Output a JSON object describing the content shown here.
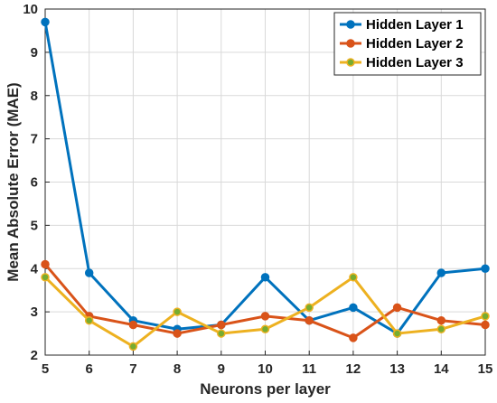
{
  "chart_data": {
    "type": "line",
    "title": "",
    "xlabel": "Neurons per layer",
    "ylabel": "Mean Absolute Error (MAE)",
    "x": [
      5,
      6,
      7,
      8,
      9,
      10,
      11,
      12,
      13,
      14,
      15
    ],
    "xlim": [
      5,
      15
    ],
    "ylim": [
      2,
      10
    ],
    "xticks": [
      "5",
      "6",
      "7",
      "8",
      "9",
      "10",
      "11",
      "12",
      "13",
      "14",
      "15"
    ],
    "yticks": [
      "2",
      "3",
      "4",
      "5",
      "6",
      "7",
      "8",
      "9",
      "10"
    ],
    "grid": true,
    "legend_position": "top-right",
    "series": [
      {
        "name": "Hidden Layer 1",
        "color": "#0072BD",
        "marker_color": "#0072BD",
        "values": [
          9.7,
          3.9,
          2.8,
          2.6,
          2.7,
          3.8,
          2.8,
          3.1,
          2.5,
          3.9,
          4.0
        ]
      },
      {
        "name": "Hidden Layer 2",
        "color": "#D95319",
        "marker_color": "#D95319",
        "values": [
          4.1,
          2.9,
          2.7,
          2.5,
          2.7,
          2.9,
          2.8,
          2.4,
          3.1,
          2.8,
          2.7
        ]
      },
      {
        "name": "Hidden Layer 3",
        "color": "#EDB120",
        "marker_color": "#77AC30",
        "values": [
          3.8,
          2.8,
          2.2,
          3.0,
          2.5,
          2.6,
          3.1,
          3.8,
          2.5,
          2.6,
          2.9
        ]
      }
    ]
  }
}
